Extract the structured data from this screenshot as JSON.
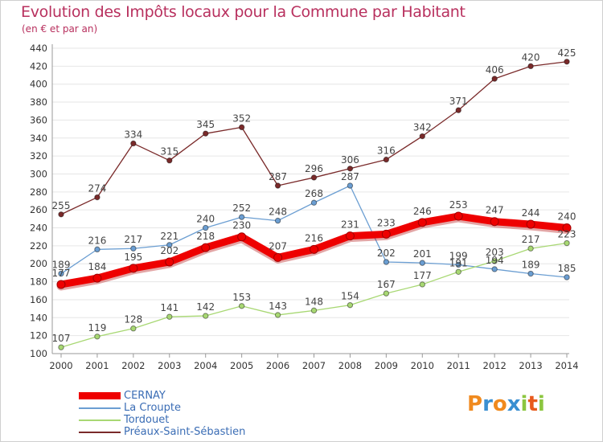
{
  "header": {
    "title": "Evolution des Impôts locaux pour la Commune par Habitant",
    "subtitle": "(en € et par an)"
  },
  "brand": {
    "letters": [
      "P",
      "r",
      "o",
      "x",
      "i",
      "t",
      "i"
    ],
    "colors": [
      "#f08a1e",
      "#3a8fd1",
      "#f08a1e",
      "#3a8fd1",
      "#8cc63f",
      "#e85a1c",
      "#8cc63f"
    ]
  },
  "colors": {
    "axis": "#999999",
    "grid": "#e6e6e6",
    "tick_text": "#333333",
    "label_text": "#444444",
    "title": "#b8305e"
  },
  "chart_data": {
    "type": "line",
    "title": "Evolution des Impôts locaux pour la Commune par Habitant",
    "subtitle": "(en € et par an)",
    "xlabel": "",
    "ylabel": "",
    "ylim": [
      100,
      440
    ],
    "yticks": [
      100,
      120,
      140,
      160,
      180,
      200,
      220,
      240,
      260,
      280,
      300,
      320,
      340,
      360,
      380,
      400,
      420,
      440
    ],
    "x": [
      "2000",
      "2001",
      "2002",
      "2003",
      "2004",
      "2005",
      "2006",
      "2007",
      "2008",
      "2009",
      "2010",
      "2011",
      "2012",
      "2013",
      "2014"
    ],
    "grid": true,
    "legend_position": "bottom-left",
    "series": [
      {
        "name": "CERNAY",
        "color": "#ee0000",
        "values": [
          177,
          184,
          195,
          202,
          218,
          230,
          207,
          216,
          231,
          233,
          246,
          253,
          247,
          244,
          240
        ],
        "labels": [
          "177",
          "184",
          "195",
          "202",
          "218",
          "230",
          "207",
          "216",
          "231",
          "233",
          "246",
          "253",
          "247",
          "244",
          "240"
        ]
      },
      {
        "name": "La Croupte",
        "color": "#6b9ed2",
        "values": [
          189,
          216,
          217,
          221,
          240,
          252,
          248,
          268,
          287,
          202,
          201,
          199,
          194,
          189,
          185
        ],
        "labels": [
          "189",
          "216",
          "217",
          "221",
          "240",
          "252",
          "248",
          "268",
          "287",
          "202",
          "201",
          "199",
          "194",
          "189",
          "185"
        ]
      },
      {
        "name": "Tordouet",
        "color": "#a8d873",
        "values": [
          107,
          119,
          128,
          141,
          142,
          153,
          143,
          148,
          154,
          167,
          177,
          191,
          203,
          217,
          223
        ],
        "labels": [
          "107",
          "119",
          "128",
          "141",
          "142",
          "153",
          "143",
          "148",
          "154",
          "167",
          "177",
          "191",
          "203",
          "217",
          "223"
        ]
      },
      {
        "name": "Préaux-Saint-Sébastien",
        "color": "#7a2a2a",
        "values": [
          255,
          274,
          334,
          315,
          345,
          352,
          287,
          296,
          306,
          316,
          342,
          371,
          406,
          420,
          425
        ],
        "labels": [
          "255",
          "274",
          "334",
          "315",
          "345",
          "352",
          "287",
          "296",
          "306",
          "316",
          "342",
          "371",
          "406",
          "420",
          "425"
        ]
      }
    ]
  }
}
